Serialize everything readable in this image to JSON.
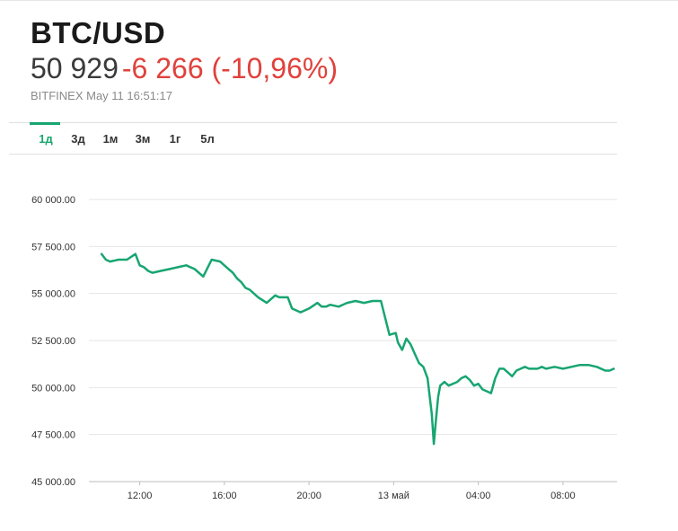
{
  "header": {
    "symbol": "BTC/USD",
    "price": "50 929",
    "change": "-6 266 (-10,96%)",
    "meta": "BITFINEX May 11 16:51:17"
  },
  "tabs": [
    {
      "label": "1д",
      "active": true
    },
    {
      "label": "3д",
      "active": false
    },
    {
      "label": "1м",
      "active": false
    },
    {
      "label": "3м",
      "active": false
    },
    {
      "label": "1г",
      "active": false
    },
    {
      "label": "5л",
      "active": false
    }
  ],
  "colors": {
    "line": "#18a571",
    "negative": "#e0413c",
    "grid": "#e6e6e6"
  },
  "chart_data": {
    "type": "line",
    "title": "",
    "xlabel": "",
    "ylabel": "",
    "ylim": [
      45000,
      60000
    ],
    "yticks": [
      {
        "value": 60000,
        "label": "60 000.00"
      },
      {
        "value": 57500,
        "label": "57 500.00"
      },
      {
        "value": 55000,
        "label": "55 000.00"
      },
      {
        "value": 52500,
        "label": "52 500.00"
      },
      {
        "value": 50000,
        "label": "50 000.00"
      },
      {
        "value": 47500,
        "label": "47 500.00"
      },
      {
        "value": 45000,
        "label": "45 000.00"
      }
    ],
    "xlim": [
      9.6,
      34.55
    ],
    "xticks": [
      {
        "value": 12,
        "label": "12:00"
      },
      {
        "value": 16,
        "label": "16:00"
      },
      {
        "value": 20,
        "label": "20:00"
      },
      {
        "value": 24,
        "label": "13 май"
      },
      {
        "value": 28,
        "label": "04:00"
      },
      {
        "value": 32,
        "label": "08:00"
      }
    ],
    "series": [
      {
        "x": [
          10.2,
          10.4,
          10.6,
          11.0,
          11.4,
          11.8,
          12.0,
          12.2,
          12.4,
          12.6,
          13.0,
          13.4,
          13.8,
          14.2,
          14.6,
          15.0,
          15.4,
          15.8,
          16.0,
          16.2,
          16.4,
          16.6,
          16.8,
          17.0,
          17.2,
          17.6,
          18.0,
          18.4,
          18.6,
          18.8,
          19.0,
          19.2,
          19.6,
          20.0,
          20.4,
          20.6,
          20.8,
          21.0,
          21.4,
          21.8,
          22.2,
          22.6,
          23.0,
          23.4,
          23.8,
          24.1,
          24.2,
          24.4,
          24.6,
          24.8,
          25.0,
          25.2,
          25.4,
          25.6,
          25.8,
          25.9,
          26.0,
          26.1,
          26.2,
          26.4,
          26.6,
          26.8,
          27.0,
          27.2,
          27.4,
          27.6,
          27.8,
          28.0,
          28.2,
          28.4,
          28.6,
          28.8,
          29.0,
          29.2,
          29.4,
          29.6,
          29.8,
          30.0,
          30.2,
          30.4,
          30.6,
          30.8,
          31.0,
          31.2,
          31.6,
          32.0,
          32.4,
          32.8,
          33.2,
          33.6,
          34.0,
          34.2,
          34.4
        ],
        "y": [
          57100,
          56800,
          56700,
          56800,
          56800,
          57100,
          56500,
          56400,
          56200,
          56100,
          56200,
          56300,
          56400,
          56500,
          56300,
          55900,
          56800,
          56700,
          56500,
          56300,
          56100,
          55800,
          55600,
          55300,
          55200,
          54800,
          54500,
          54900,
          54800,
          54800,
          54800,
          54200,
          54000,
          54200,
          54500,
          54300,
          54300,
          54400,
          54300,
          54500,
          54600,
          54500,
          54600,
          54600,
          52800,
          52900,
          52400,
          52000,
          52600,
          52300,
          51800,
          51300,
          51100,
          50500,
          48600,
          47000,
          48300,
          49500,
          50100,
          50300,
          50100,
          50200,
          50300,
          50500,
          50600,
          50400,
          50100,
          50200,
          49900,
          49800,
          49700,
          50500,
          51000,
          51000,
          50800,
          50600,
          50900,
          51000,
          51100,
          51000,
          51000,
          51000,
          51100,
          51000,
          51100,
          51000,
          51100,
          51200,
          51200,
          51100,
          50900,
          50900,
          51000
        ]
      }
    ]
  }
}
